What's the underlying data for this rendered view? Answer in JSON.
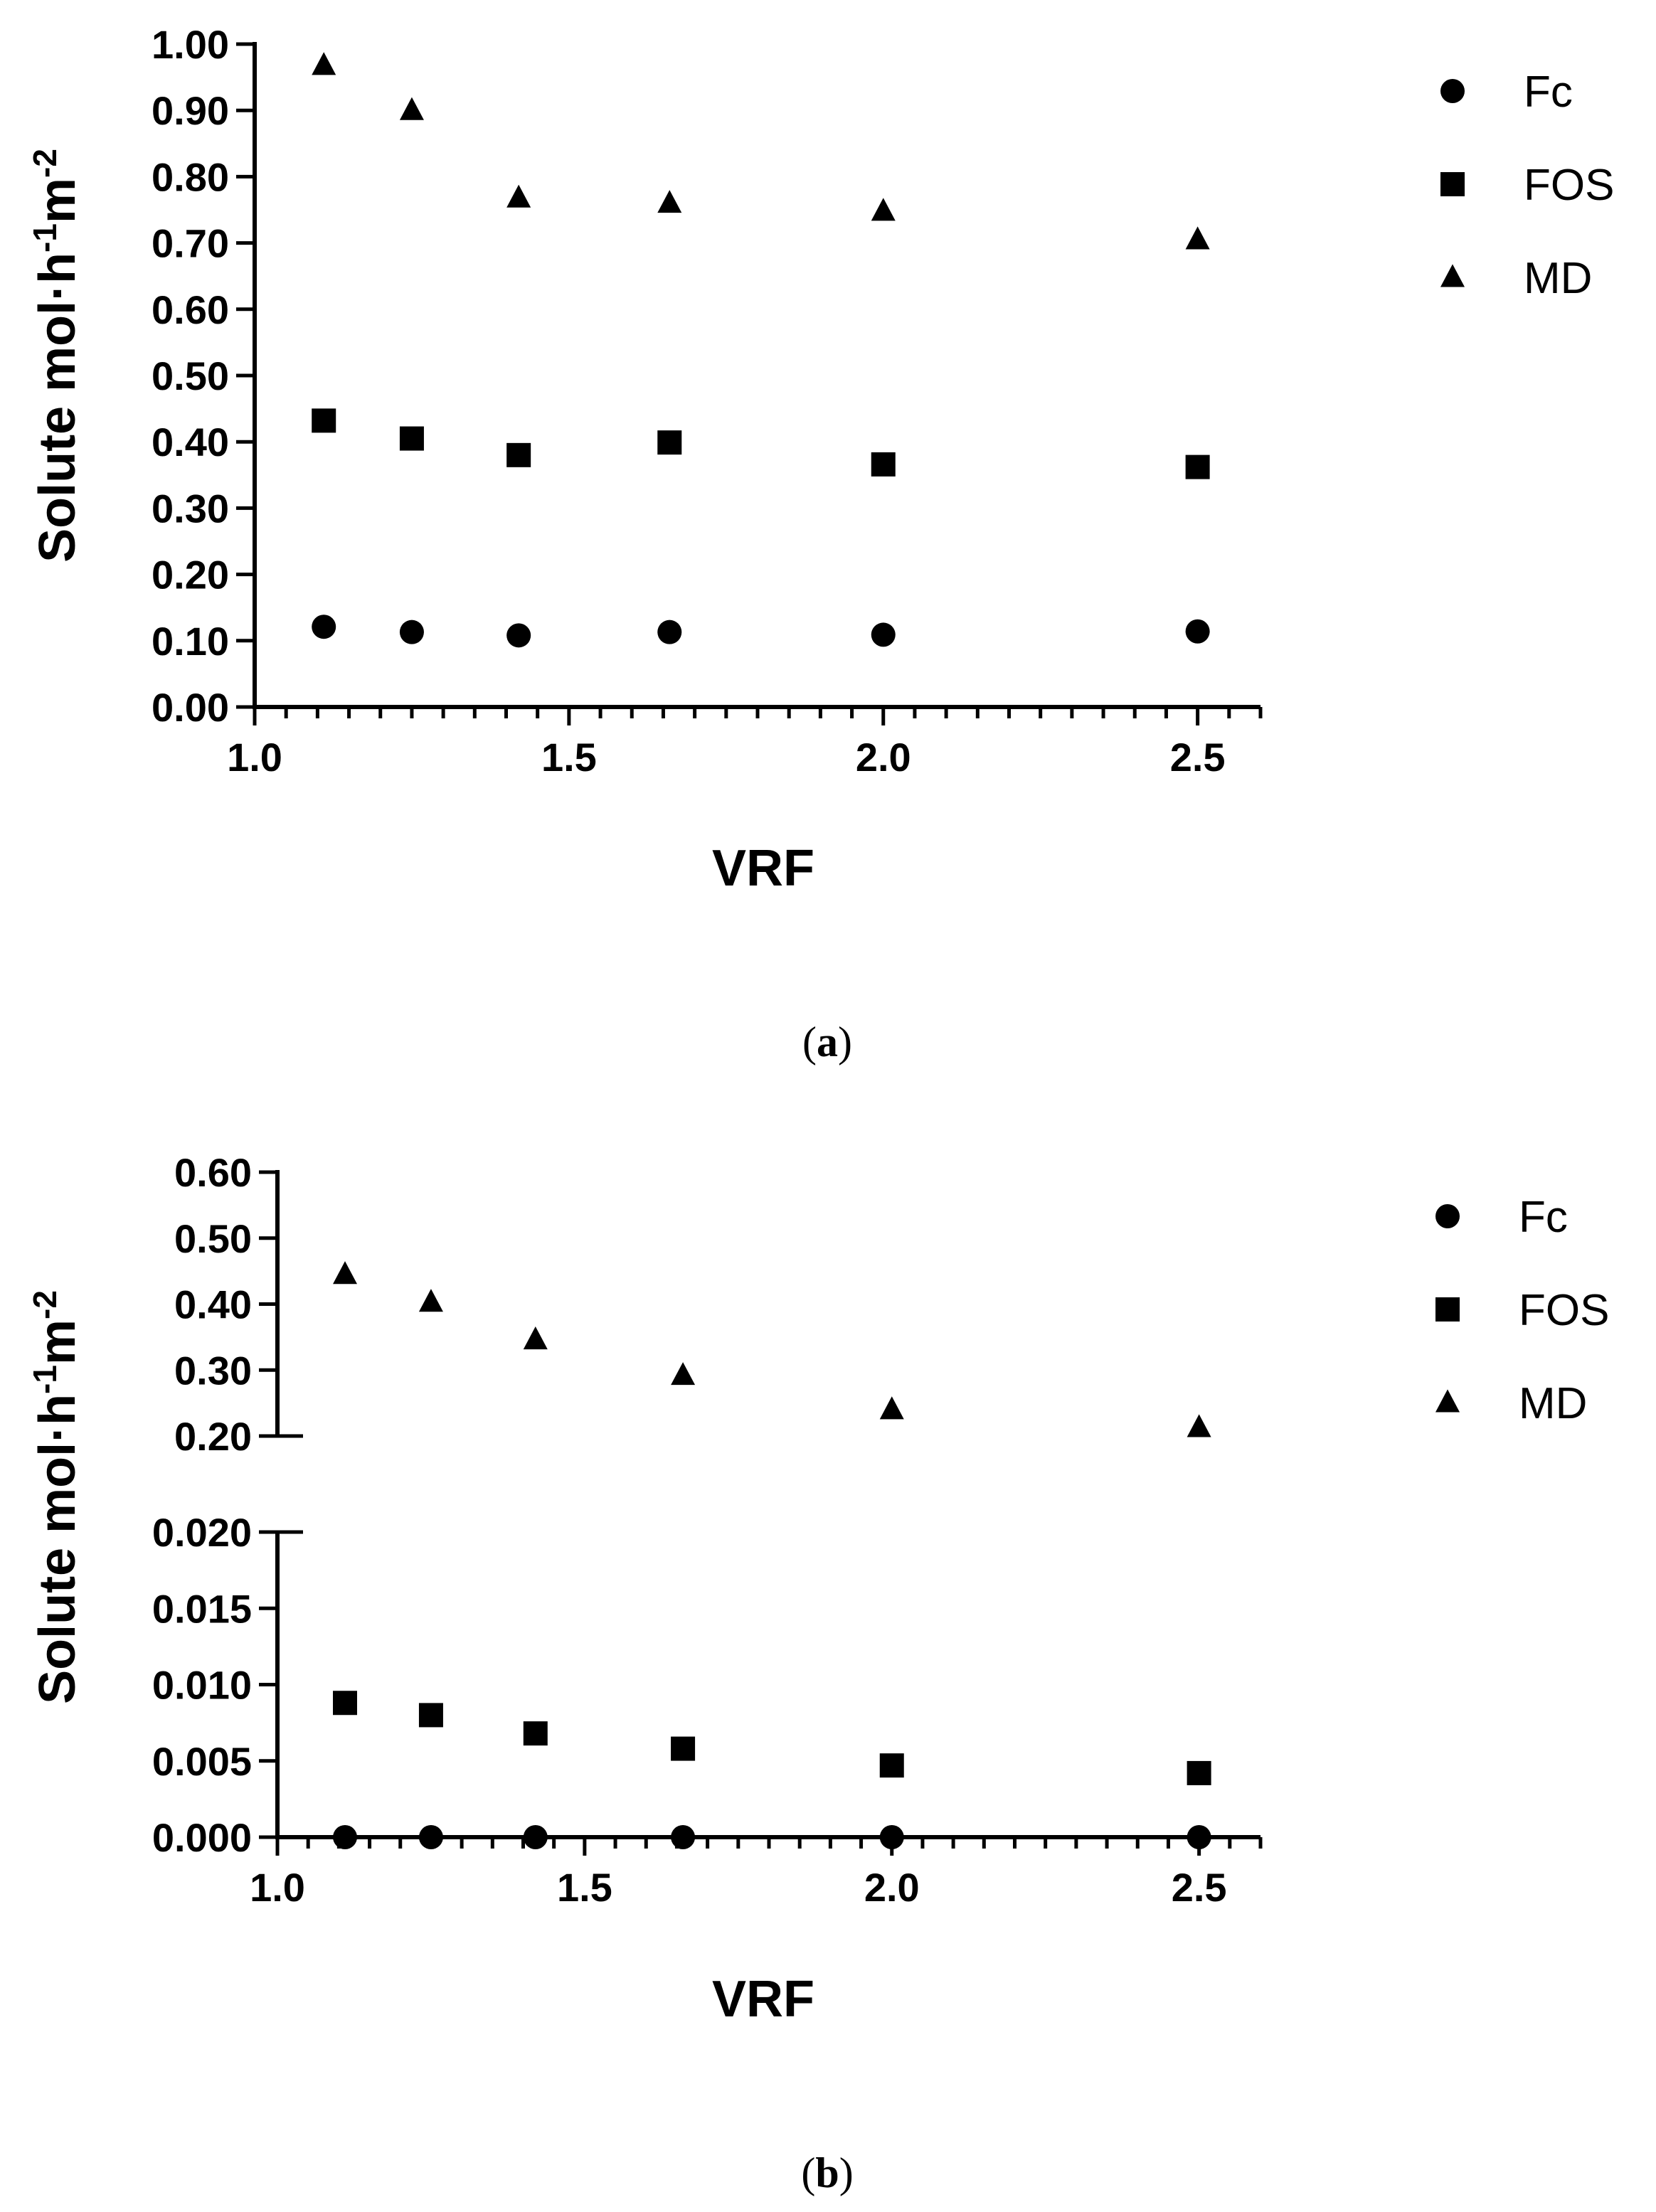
{
  "chart_data": [
    {
      "type": "scatter",
      "panel_label": "a",
      "xlabel": "VRF",
      "ylabel": "Solute mol·h-1m-2",
      "ylabel_parts": {
        "base": "Solute mol·h",
        "sup1": "-1",
        "mid": "m",
        "sup2": "-2"
      },
      "xlim": [
        1.0,
        2.6
      ],
      "ylim": [
        0.0,
        1.0
      ],
      "x_ticks": [
        "1.0",
        "1.5",
        "2.0",
        "2.5"
      ],
      "y_ticks": [
        "0.00",
        "0.10",
        "0.20",
        "0.30",
        "0.40",
        "0.50",
        "0.60",
        "0.70",
        "0.80",
        "0.90",
        "1.00"
      ],
      "x": [
        1.11,
        1.25,
        1.42,
        1.66,
        2.0,
        2.5
      ],
      "series": [
        {
          "name": "Fc",
          "marker": "circle",
          "values": [
            0.121,
            0.113,
            0.108,
            0.113,
            0.109,
            0.114
          ]
        },
        {
          "name": "FOS",
          "marker": "square",
          "values": [
            0.432,
            0.405,
            0.38,
            0.399,
            0.366,
            0.362
          ]
        },
        {
          "name": "MD",
          "marker": "triangle",
          "values": [
            0.968,
            0.9,
            0.768,
            0.76,
            0.748,
            0.705
          ]
        }
      ],
      "legend_position": "right"
    },
    {
      "type": "scatter",
      "panel_label": "b",
      "xlabel": "VRF",
      "ylabel": "Solute mol·h-1m-2",
      "ylabel_parts": {
        "base": "Solute mol·h",
        "sup1": "-1",
        "mid": "m",
        "sup2": "-2"
      },
      "xlim": [
        1.0,
        2.6
      ],
      "broken_y_axis": true,
      "ylim_lower": [
        0.0,
        0.02
      ],
      "ylim_upper": [
        0.2,
        0.6
      ],
      "y_ticks_lower": [
        "0.000",
        "0.005",
        "0.010",
        "0.015",
        "0.020"
      ],
      "y_ticks_upper": [
        "0.20",
        "0.30",
        "0.40",
        "0.50",
        "0.60"
      ],
      "x_ticks": [
        "1.0",
        "1.5",
        "2.0",
        "2.5"
      ],
      "x": [
        1.11,
        1.25,
        1.42,
        1.66,
        2.0,
        2.5
      ],
      "series": [
        {
          "name": "Fc",
          "marker": "circle",
          "values": [
            0.0,
            0.0,
            0.0,
            0.0,
            0.0,
            0.0
          ]
        },
        {
          "name": "FOS",
          "marker": "square",
          "values": [
            0.0088,
            0.008,
            0.0068,
            0.0058,
            0.0047,
            0.0042
          ]
        },
        {
          "name": "MD",
          "marker": "triangle",
          "values": [
            0.445,
            0.403,
            0.346,
            0.292,
            0.24,
            0.213
          ]
        }
      ],
      "legend_position": "right"
    }
  ]
}
